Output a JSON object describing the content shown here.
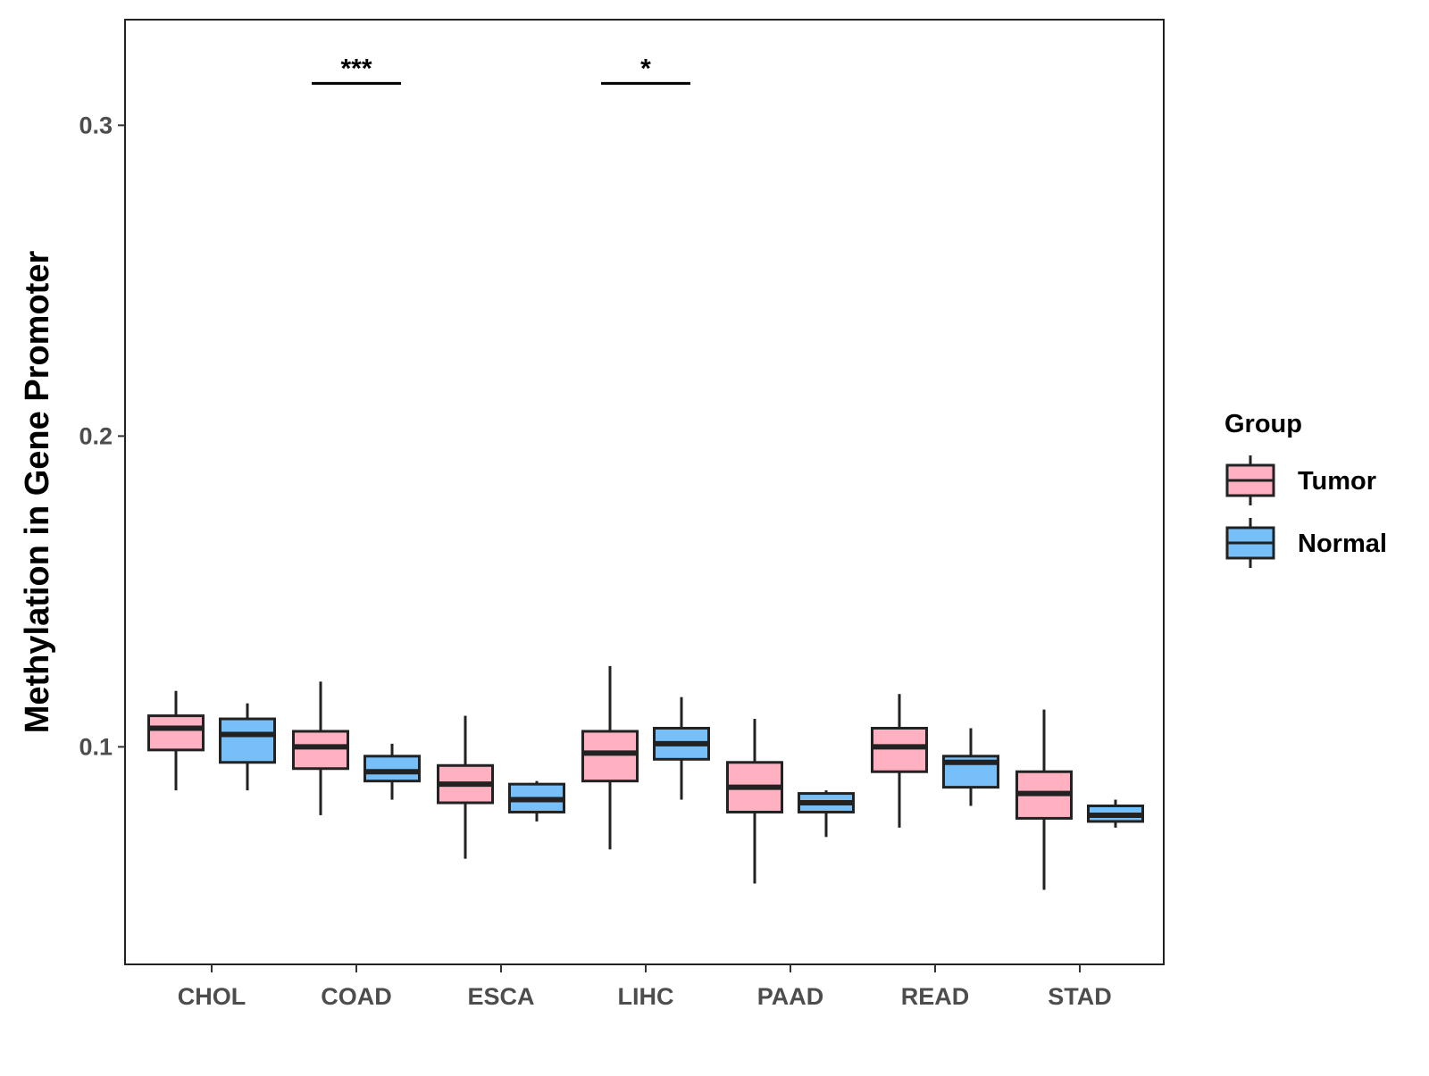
{
  "chart_data": {
    "type": "boxplot",
    "ylabel": "Methylation in Gene Promoter",
    "xlabel": "",
    "ylim": [
      0.03,
      0.334
    ],
    "yticks": [
      0.1,
      0.2,
      0.3
    ],
    "ytick_labels": [
      "0.1",
      "0.2",
      "0.3"
    ],
    "grid": false,
    "categories": [
      "CHOL",
      "COAD",
      "ESCA",
      "LIHC",
      "PAAD",
      "READ",
      "STAD"
    ],
    "legend": {
      "title": "Group",
      "position": "right",
      "entries": [
        {
          "name": "Tumor",
          "color": "#FFB0C1"
        },
        {
          "name": "Normal",
          "color": "#76BFF9"
        }
      ]
    },
    "series": [
      {
        "name": "Tumor",
        "color": "#FFB0C1",
        "boxes": [
          {
            "min": 0.086,
            "q1": 0.099,
            "median": 0.106,
            "q3": 0.11,
            "max": 0.118
          },
          {
            "min": 0.078,
            "q1": 0.093,
            "median": 0.1,
            "q3": 0.105,
            "max": 0.121
          },
          {
            "min": 0.064,
            "q1": 0.082,
            "median": 0.088,
            "q3": 0.094,
            "max": 0.11
          },
          {
            "min": 0.067,
            "q1": 0.089,
            "median": 0.098,
            "q3": 0.105,
            "max": 0.126
          },
          {
            "min": 0.056,
            "q1": 0.079,
            "median": 0.087,
            "q3": 0.095,
            "max": 0.109
          },
          {
            "min": 0.074,
            "q1": 0.092,
            "median": 0.1,
            "q3": 0.106,
            "max": 0.117
          },
          {
            "min": 0.054,
            "q1": 0.077,
            "median": 0.085,
            "q3": 0.092,
            "max": 0.112
          }
        ]
      },
      {
        "name": "Normal",
        "color": "#76BFF9",
        "boxes": [
          {
            "min": 0.086,
            "q1": 0.095,
            "median": 0.104,
            "q3": 0.109,
            "max": 0.114
          },
          {
            "min": 0.083,
            "q1": 0.089,
            "median": 0.092,
            "q3": 0.097,
            "max": 0.101
          },
          {
            "min": 0.076,
            "q1": 0.079,
            "median": 0.083,
            "q3": 0.088,
            "max": 0.089
          },
          {
            "min": 0.083,
            "q1": 0.096,
            "median": 0.101,
            "q3": 0.106,
            "max": 0.116
          },
          {
            "min": 0.071,
            "q1": 0.079,
            "median": 0.082,
            "q3": 0.085,
            "max": 0.086
          },
          {
            "min": 0.081,
            "q1": 0.087,
            "median": 0.095,
            "q3": 0.097,
            "max": 0.106
          },
          {
            "min": 0.074,
            "q1": 0.076,
            "median": 0.078,
            "q3": 0.081,
            "max": 0.083
          }
        ]
      }
    ],
    "annotations": [
      {
        "category": "COAD",
        "text": "***",
        "y": 0.3135
      },
      {
        "category": "LIHC",
        "text": "*",
        "y": 0.3135
      }
    ]
  }
}
